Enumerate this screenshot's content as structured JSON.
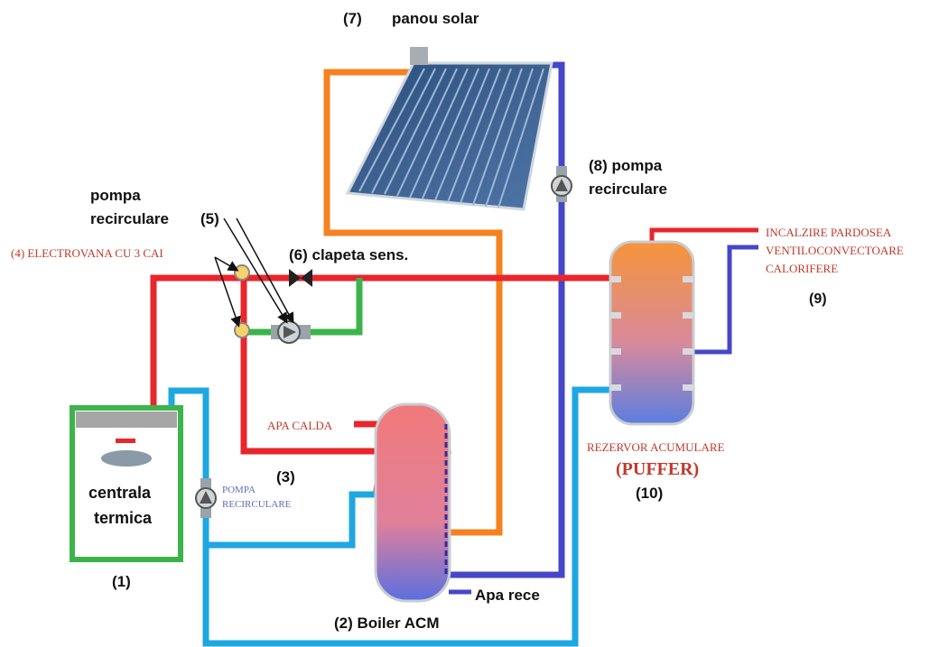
{
  "labels": {
    "panou_solar_num": "(7)",
    "panou_solar": "panou solar",
    "pompa8_line1": "(8)  pompa",
    "pompa8_line2": "recirculare",
    "pompa5_line1": "pompa",
    "pompa5_line2": "recirculare",
    "pompa5_num": "(5)",
    "electrovana": "(4) ELECTROVANA CU 3 CAI",
    "clapeta": "(6)  clapeta sens.",
    "incalzire": "INCALZIRE PARDOSEA",
    "ventilo": "VENTILOCONVECTOARE",
    "calorifere": "CALORIFERE",
    "num9": "(9)",
    "apa_calda": "APA CALDA",
    "num3": "(3)",
    "pompa_line1": "POMPA",
    "pompa_line2": "RECIRCULARE",
    "centrala_line1": "centrala",
    "centrala_line2": "termica",
    "num1": "(1)",
    "boiler": "(2)  Boiler ACM",
    "apa_rece": "Apa rece",
    "rezervor": "REZERVOR ACUMULARE",
    "puffer": "(PUFFER)",
    "num10": "(10)"
  },
  "colors": {
    "hot_pipe": "#e8262c",
    "cold_pipe": "#1ea7e1",
    "solar_supply": "#f58220",
    "solar_return": "#4646c8",
    "bypass_pipe": "#3cb44b",
    "boiler_frame": "#3cb44b",
    "label_red": "#c0392b"
  }
}
